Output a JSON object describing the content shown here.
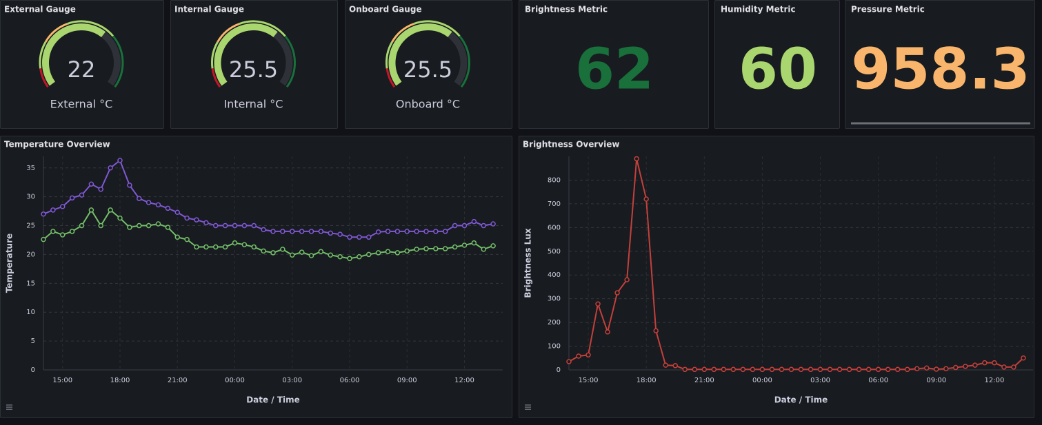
{
  "gauges": [
    {
      "title": "External Gauge",
      "value": 22,
      "label": "External °C"
    },
    {
      "title": "Internal Gauge",
      "value": 25.5,
      "label": "Internal °C"
    },
    {
      "title": "Onboard Gauge",
      "value": 25.5,
      "label": "Onboard °C"
    }
  ],
  "stats": [
    {
      "title": "Brightness Metric",
      "value": 62,
      "color": "#19703b"
    },
    {
      "title": "Humidity Metric",
      "value": 60,
      "color": "#a9d66e"
    },
    {
      "title": "Pressure Metric",
      "value": 958.3,
      "color": "#f9b56b"
    }
  ],
  "chart_data": [
    {
      "type": "line",
      "title": "Temperature Overview",
      "x_label": "Date / Time",
      "y_label": "Temperature",
      "x": [
        "14:00",
        "14:30",
        "15:00",
        "15:30",
        "16:00",
        "16:30",
        "17:00",
        "17:30",
        "18:00",
        "18:30",
        "19:00",
        "19:30",
        "20:00",
        "20:30",
        "21:00",
        "21:30",
        "22:00",
        "22:30",
        "23:00",
        "23:30",
        "00:00",
        "00:30",
        "01:00",
        "01:30",
        "02:00",
        "02:30",
        "03:00",
        "03:30",
        "04:00",
        "04:30",
        "05:00",
        "05:30",
        "06:00",
        "06:30",
        "07:00",
        "07:30",
        "08:00",
        "08:30",
        "09:00",
        "09:30",
        "10:00",
        "10:30",
        "11:00",
        "11:30",
        "12:00",
        "12:30",
        "13:00",
        "13:30"
      ],
      "xticks": [
        "15:00",
        "18:00",
        "21:00",
        "00:00",
        "03:00",
        "06:00",
        "09:00",
        "12:00"
      ],
      "ylim": [
        0,
        37
      ],
      "yticks": [
        0,
        5,
        10,
        15,
        20,
        25,
        30,
        35
      ],
      "grid": true,
      "series": [
        {
          "color": "#8058d6",
          "values": [
            27,
            27.7,
            28.3,
            29.8,
            30.3,
            32.2,
            31.3,
            35,
            36.3,
            32,
            29.7,
            29,
            28.6,
            28,
            27.3,
            26.3,
            26,
            25.5,
            25,
            25,
            25,
            25,
            25,
            24.3,
            24,
            24,
            24,
            24,
            24,
            24,
            23.7,
            23.5,
            23,
            23,
            23,
            23.9,
            24,
            24,
            24,
            24,
            24,
            24,
            24,
            25,
            25,
            25.7,
            25,
            25.3
          ]
        },
        {
          "color": "#73bf69",
          "values": [
            22.6,
            24,
            23.4,
            24,
            25,
            27.7,
            25,
            27.7,
            26.3,
            24.7,
            25,
            25,
            25.3,
            24.7,
            23,
            22.6,
            21.3,
            21.3,
            21.3,
            21.3,
            22,
            21.7,
            21.3,
            20.6,
            20.3,
            20.9,
            19.9,
            20.4,
            19.8,
            20.5,
            19.9,
            19.6,
            19.3,
            19.6,
            20,
            20.3,
            20.5,
            20.3,
            20.6,
            20.9,
            21,
            21,
            21,
            21.3,
            21.6,
            22,
            20.9,
            21.5
          ]
        }
      ]
    },
    {
      "type": "line",
      "title": "Brightness Overview",
      "x_label": "Date / Time",
      "y_label": "Brightness Lux",
      "x": [
        "14:00",
        "14:30",
        "15:00",
        "15:30",
        "16:00",
        "16:30",
        "17:00",
        "17:30",
        "18:00",
        "18:30",
        "19:00",
        "19:30",
        "20:00",
        "20:30",
        "21:00",
        "21:30",
        "22:00",
        "22:30",
        "23:00",
        "23:30",
        "00:00",
        "00:30",
        "01:00",
        "01:30",
        "02:00",
        "02:30",
        "03:00",
        "03:30",
        "04:00",
        "04:30",
        "05:00",
        "05:30",
        "06:00",
        "06:30",
        "07:00",
        "07:30",
        "08:00",
        "08:30",
        "09:00",
        "09:30",
        "10:00",
        "10:30",
        "11:00",
        "11:30",
        "12:00",
        "12:30",
        "13:00",
        "13:30"
      ],
      "xticks": [
        "15:00",
        "18:00",
        "21:00",
        "00:00",
        "03:00",
        "06:00",
        "09:00",
        "12:00"
      ],
      "ylim": [
        0,
        900
      ],
      "yticks": [
        0,
        100,
        200,
        300,
        400,
        500,
        600,
        700,
        800
      ],
      "grid": true,
      "series": [
        {
          "color": "#c4403b",
          "values": [
            35,
            58,
            63,
            278,
            160,
            325,
            380,
            890,
            720,
            165,
            20,
            18,
            2,
            2,
            2,
            2,
            2,
            2,
            2,
            2,
            2,
            2,
            2,
            2,
            2,
            2,
            2,
            2,
            2,
            2,
            2,
            2,
            2,
            2,
            2,
            2,
            5,
            8,
            3,
            5,
            10,
            15,
            20,
            30,
            30,
            12,
            12,
            50
          ]
        }
      ]
    }
  ]
}
